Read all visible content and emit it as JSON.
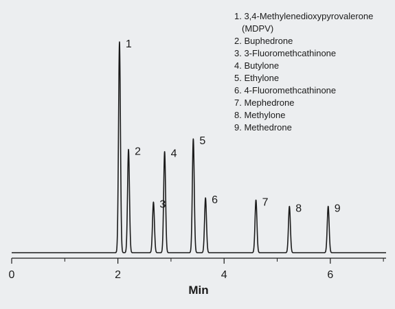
{
  "chart_data": {
    "type": "line",
    "title": "",
    "xlabel": "Min",
    "ylabel": "",
    "xlim": [
      0,
      7.05
    ],
    "ylim": [
      0,
      1
    ],
    "x_ticks": [
      0,
      2,
      4,
      6
    ],
    "x_tick_labels": [
      "0",
      "2",
      "4",
      "6"
    ],
    "x_minor_ticks": [
      1,
      3,
      5,
      7
    ],
    "grid": false,
    "legend_position": "top-right",
    "series": [
      {
        "peaks": [
          {
            "label": "1",
            "time": 2.03,
            "height": 1.0
          },
          {
            "label": "2",
            "time": 2.2,
            "height": 0.49
          },
          {
            "label": "3",
            "time": 2.67,
            "height": 0.24
          },
          {
            "label": "4",
            "time": 2.88,
            "height": 0.48
          },
          {
            "label": "5",
            "time": 3.42,
            "height": 0.54
          },
          {
            "label": "6",
            "time": 3.65,
            "height": 0.26
          },
          {
            "label": "7",
            "time": 4.6,
            "height": 0.25
          },
          {
            "label": "8",
            "time": 5.23,
            "height": 0.22
          },
          {
            "label": "9",
            "time": 5.96,
            "height": 0.22
          }
        ]
      }
    ],
    "legend": [
      {
        "num": "1.",
        "name": "3,4-Methylenedioxypyrovalerone",
        "cont": "(MDPV)"
      },
      {
        "num": "2.",
        "name": "Buphedrone"
      },
      {
        "num": "3.",
        "name": "3-Fluoromethcathinone"
      },
      {
        "num": "4.",
        "name": "Butylone"
      },
      {
        "num": "5.",
        "name": "Ethylone"
      },
      {
        "num": "6.",
        "name": "4-Fluoromethcathinone"
      },
      {
        "num": "7.",
        "name": "Mephedrone"
      },
      {
        "num": "8.",
        "name": "Methylone"
      },
      {
        "num": "9.",
        "name": "Methedrone"
      }
    ],
    "colors": {
      "trace": "#1a1a1a",
      "background": "#eceef0"
    }
  }
}
